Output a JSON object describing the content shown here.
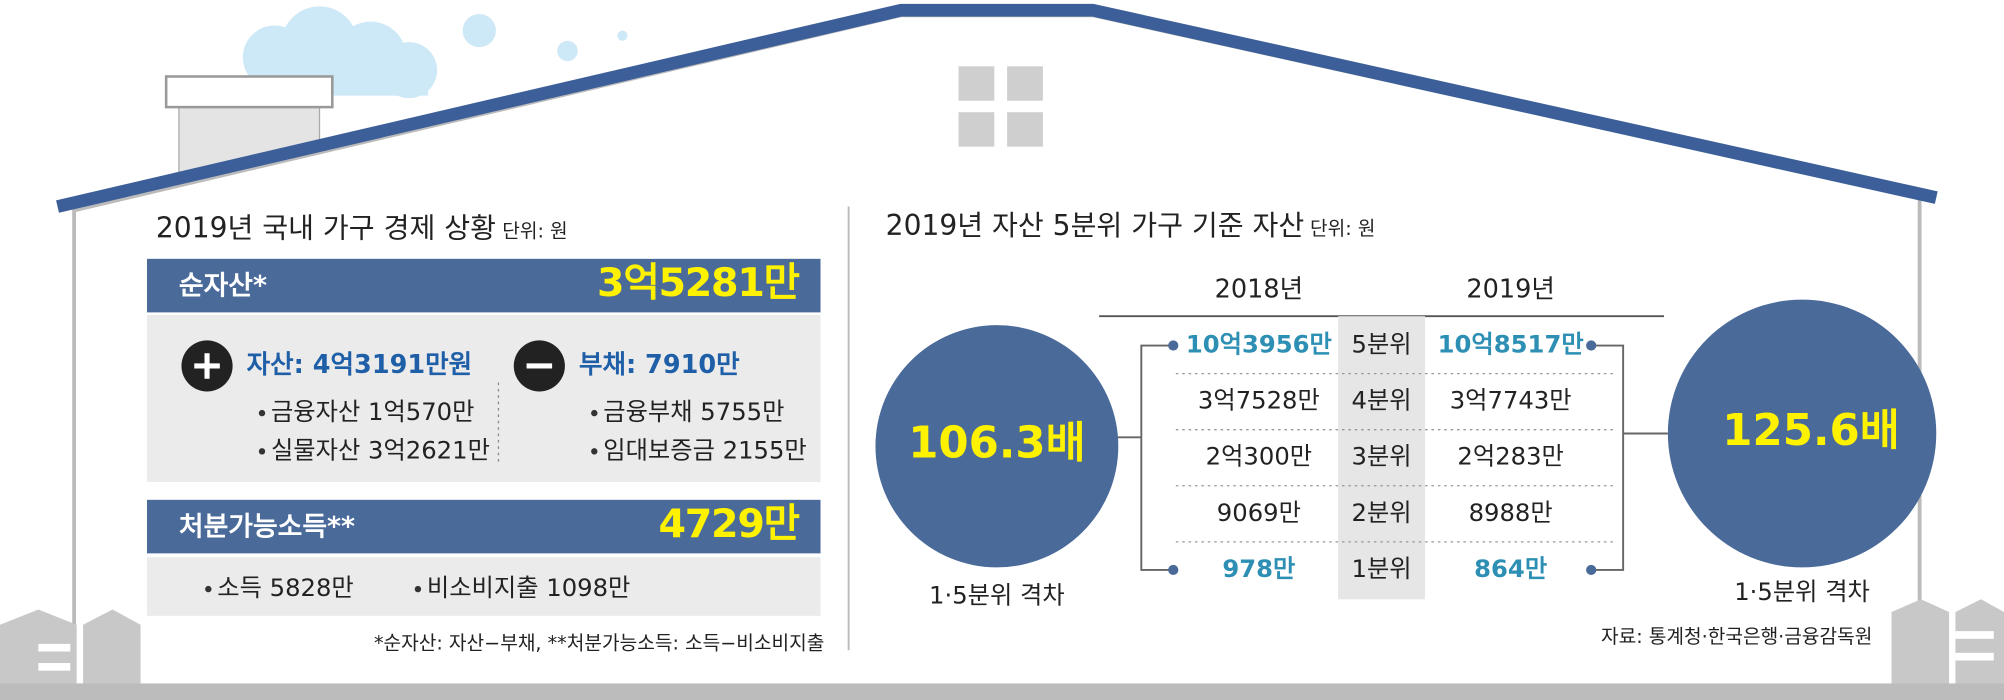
{
  "left": {
    "title": "2019년 국내 가구 경제 상황",
    "unit": "단위: 원",
    "net_assets": {
      "label": "순자산*",
      "value": "3억5281만"
    },
    "assets": {
      "label": "자산: 4억3191만원",
      "items": [
        "금융자산 1억570만",
        "실물자산 3억2621만"
      ]
    },
    "debt": {
      "label": "부채: 7910만",
      "items": [
        "금융부채 5755만",
        "임대보증금 2155만"
      ]
    },
    "disposable": {
      "label": "처분가능소득**",
      "value": "4729만",
      "items": [
        "소득 5828만",
        "비소비지출 1098만"
      ]
    },
    "footnote": "*순자산: 자산−부채, **처분가능소득: 소득−비소비지출"
  },
  "right": {
    "title": "2019년 자산 5분위 가구 기준 자산",
    "unit": "단위: 원",
    "columns": [
      "2018년",
      "2019년"
    ],
    "rows": [
      [
        "10억3956만",
        "5분위",
        "10억8517만"
      ],
      [
        "3억7528만",
        "4분위",
        "3억7743만"
      ],
      [
        "2억300만",
        "3분위",
        "2억283만"
      ],
      [
        "9069만",
        "2분위",
        "8988만"
      ],
      [
        "978만",
        "1분위",
        "864만"
      ]
    ],
    "gaps": [
      {
        "value": "106.3배",
        "label": "1·5분위 격차"
      },
      {
        "value": "125.6배",
        "label": "1·5분위 격차"
      }
    ],
    "source": "자료: 통계청·한국은행·금융감독원"
  }
}
